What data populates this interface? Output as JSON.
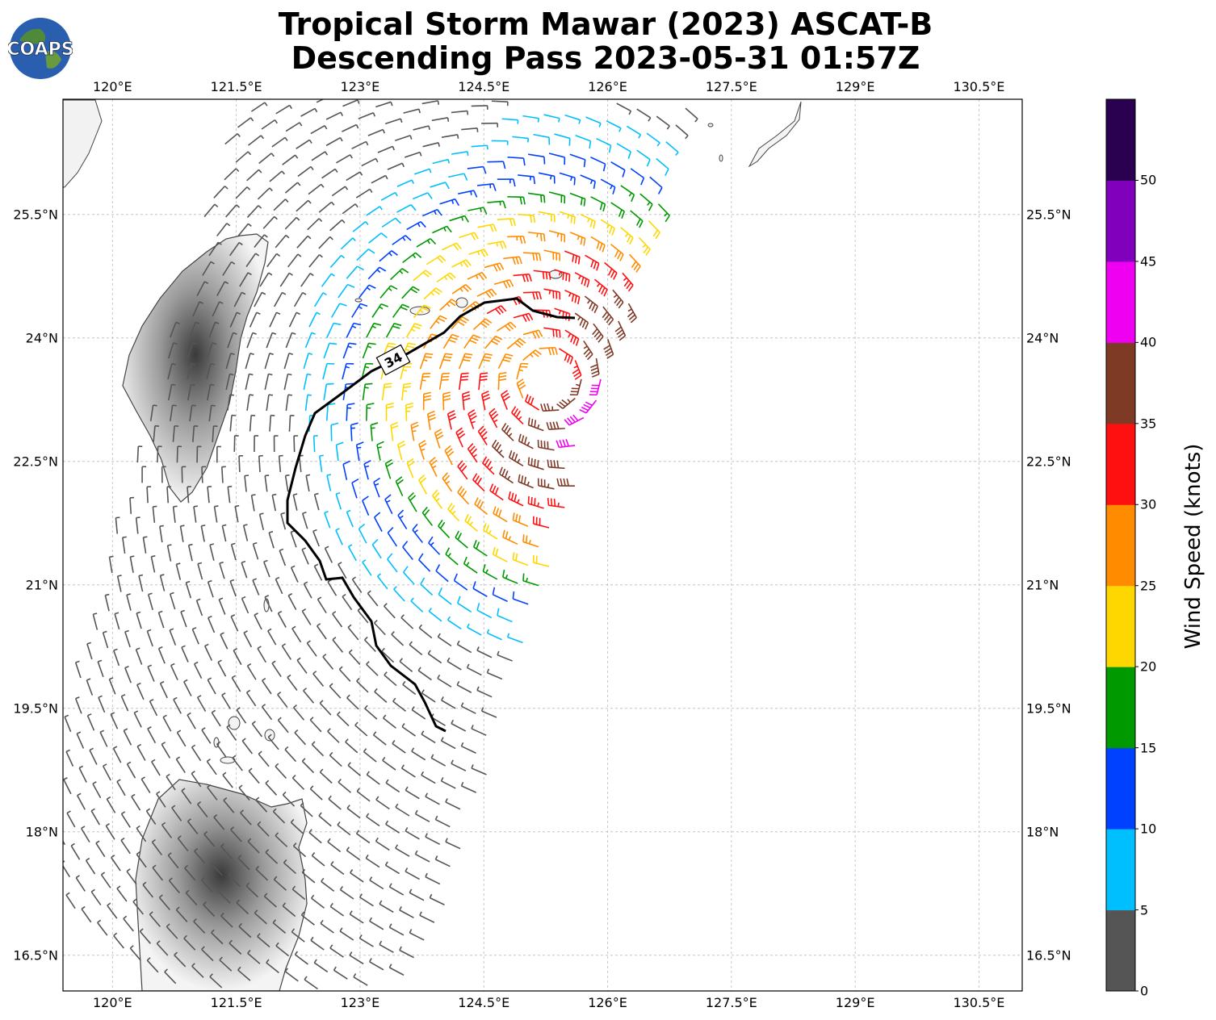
{
  "title_line1": "Tropical Storm Mawar (2023) ASCAT-B",
  "title_line2": "Descending Pass 2023-05-31 01:57Z",
  "logo_text": "COAPS",
  "lon_ticks": [
    "120°E",
    "121.5°E",
    "123°E",
    "124.5°E",
    "126°E",
    "127.5°E",
    "129°E",
    "130.5°E"
  ],
  "lat_ticks": [
    "25.5°N",
    "24°N",
    "22.5°N",
    "21°N",
    "19.5°N",
    "18°N",
    "16.5°N"
  ],
  "contour_label": "34",
  "colorbar": {
    "label": "Wind Speed (knots)",
    "ticks": [
      "0",
      "5",
      "10",
      "15",
      "20",
      "25",
      "30",
      "35",
      "40",
      "45",
      "50"
    ],
    "colors": [
      "#555555",
      "#00bfff",
      "#0040ff",
      "#009900",
      "#ffd700",
      "#ff8c00",
      "#ff1010",
      "#7f3a26",
      "#f000f0",
      "#8000bb",
      "#2a0050"
    ]
  },
  "colors": {
    "coastline": "#444444",
    "contour": "#000000",
    "grid": "#bbbbbb"
  }
}
